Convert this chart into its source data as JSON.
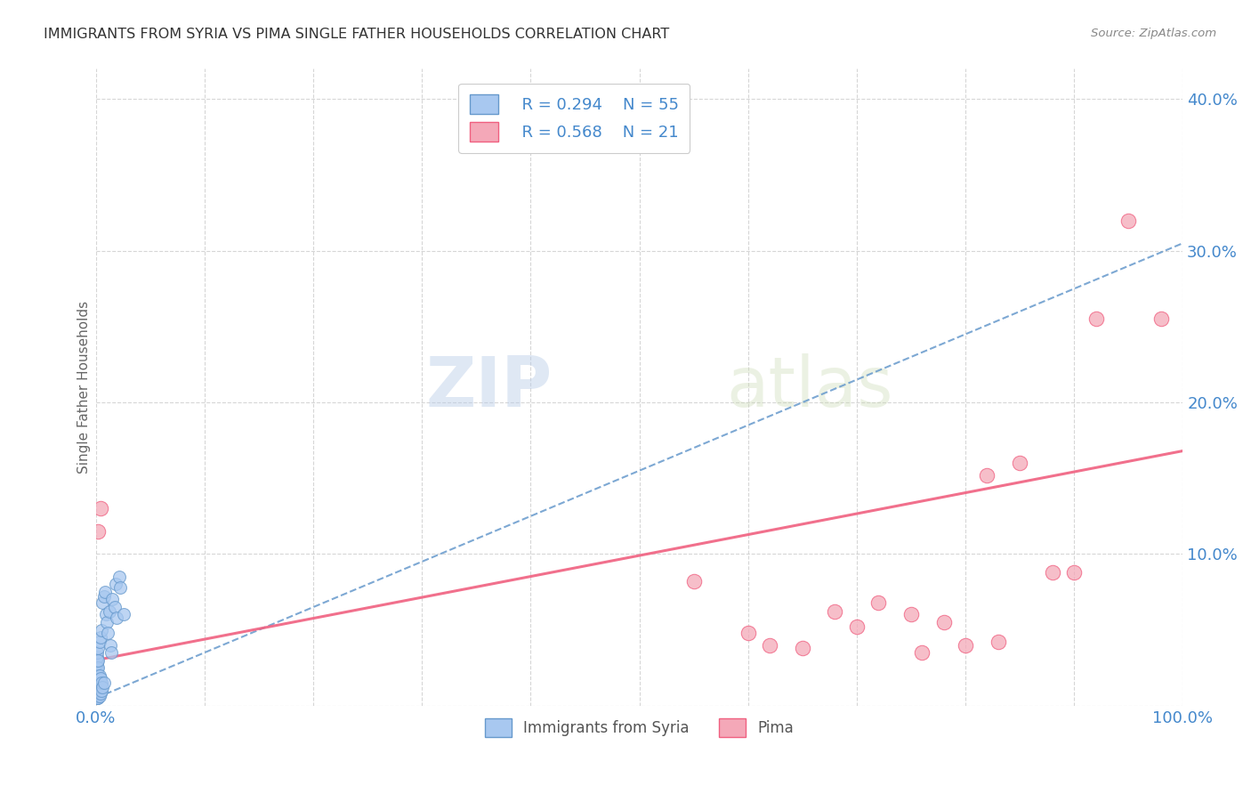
{
  "title": "IMMIGRANTS FROM SYRIA VS PIMA SINGLE FATHER HOUSEHOLDS CORRELATION CHART",
  "source": "Source: ZipAtlas.com",
  "ylabel": "Single Father Households",
  "xlim": [
    0,
    1.0
  ],
  "ylim": [
    0,
    0.42
  ],
  "xticks": [
    0.0,
    0.1,
    0.2,
    0.3,
    0.4,
    0.5,
    0.6,
    0.7,
    0.8,
    0.9,
    1.0
  ],
  "xticklabels": [
    "0.0%",
    "",
    "",
    "",
    "",
    "",
    "",
    "",
    "",
    "",
    "100.0%"
  ],
  "yticks": [
    0.0,
    0.1,
    0.2,
    0.3,
    0.4
  ],
  "yticklabels": [
    "",
    "10.0%",
    "20.0%",
    "30.0%",
    "40.0%"
  ],
  "legend_r1": "R = 0.294",
  "legend_n1": "N = 55",
  "legend_r2": "R = 0.568",
  "legend_n2": "N = 21",
  "color_blue": "#a8c8f0",
  "color_pink": "#f4a8b8",
  "color_blue_line": "#6699cc",
  "color_pink_line": "#f06080",
  "color_title": "#333333",
  "color_axis_labels": "#4488cc",
  "grid_color": "#cccccc",
  "watermark_zip": "ZIP",
  "watermark_atlas": "atlas",
  "blue_scatter_x": [
    0.001,
    0.001,
    0.001,
    0.001,
    0.001,
    0.001,
    0.001,
    0.001,
    0.001,
    0.001,
    0.001,
    0.001,
    0.001,
    0.001,
    0.001,
    0.001,
    0.001,
    0.002,
    0.002,
    0.002,
    0.002,
    0.002,
    0.002,
    0.002,
    0.002,
    0.003,
    0.003,
    0.003,
    0.003,
    0.003,
    0.004,
    0.004,
    0.004,
    0.004,
    0.005,
    0.005,
    0.005,
    0.006,
    0.006,
    0.007,
    0.007,
    0.008,
    0.009,
    0.01,
    0.011,
    0.012,
    0.013,
    0.014,
    0.015,
    0.017,
    0.018,
    0.019,
    0.021,
    0.022,
    0.025
  ],
  "blue_scatter_y": [
    0.005,
    0.005,
    0.005,
    0.006,
    0.007,
    0.008,
    0.01,
    0.012,
    0.015,
    0.018,
    0.02,
    0.022,
    0.025,
    0.028,
    0.03,
    0.032,
    0.035,
    0.005,
    0.008,
    0.01,
    0.015,
    0.02,
    0.025,
    0.03,
    0.038,
    0.006,
    0.01,
    0.015,
    0.02,
    0.042,
    0.008,
    0.012,
    0.018,
    0.045,
    0.01,
    0.015,
    0.05,
    0.012,
    0.068,
    0.015,
    0.072,
    0.075,
    0.06,
    0.055,
    0.048,
    0.062,
    0.04,
    0.035,
    0.07,
    0.065,
    0.08,
    0.058,
    0.085,
    0.078,
    0.06
  ],
  "pink_scatter_x": [
    0.002,
    0.004,
    0.55,
    0.6,
    0.62,
    0.65,
    0.68,
    0.7,
    0.72,
    0.75,
    0.76,
    0.78,
    0.8,
    0.82,
    0.83,
    0.85,
    0.88,
    0.9,
    0.92,
    0.95,
    0.98
  ],
  "pink_scatter_y": [
    0.115,
    0.13,
    0.082,
    0.048,
    0.04,
    0.038,
    0.062,
    0.052,
    0.068,
    0.06,
    0.035,
    0.055,
    0.04,
    0.152,
    0.042,
    0.16,
    0.088,
    0.088,
    0.255,
    0.32,
    0.255
  ],
  "blue_trendline_x": [
    0.0,
    1.0
  ],
  "blue_trendline_y": [
    0.005,
    0.305
  ],
  "pink_trendline_x": [
    0.0,
    1.0
  ],
  "pink_trendline_y": [
    0.03,
    0.168
  ]
}
